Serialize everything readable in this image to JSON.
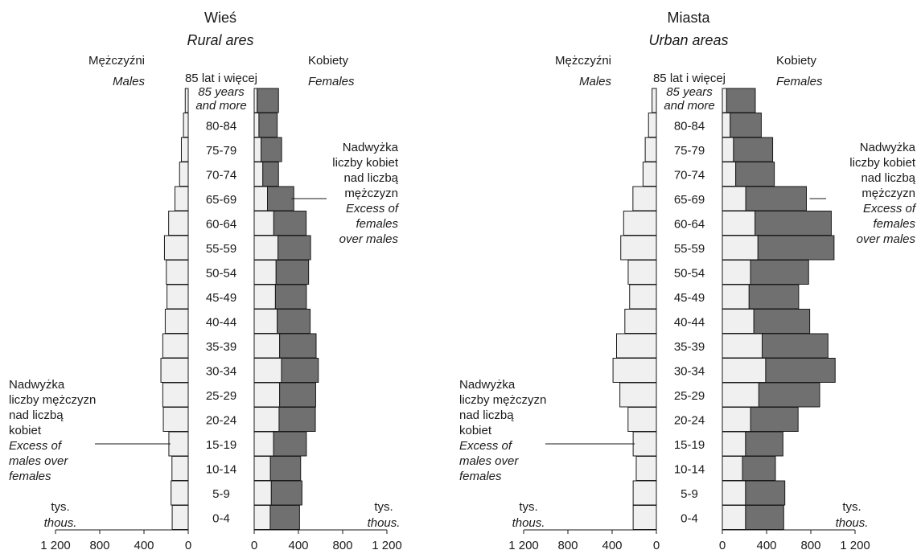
{
  "chart_data": {
    "type": "bar",
    "unit_label": "tys.",
    "unit_label_en": "thous.",
    "side_labels": {
      "males": "Mężczyźni",
      "males_en": "Males",
      "females": "Kobiety",
      "females_en": "Females"
    },
    "age_groups": [
      "85 lat i więcej",
      "80-84",
      "75-79",
      "70-74",
      "65-69",
      "60-64",
      "55-59",
      "50-54",
      "45-49",
      "40-44",
      "35-39",
      "30-34",
      "25-29",
      "20-24",
      "15-19",
      "10-14",
      "5-9",
      "0-4"
    ],
    "age_group_top_en_line1": "85 years",
    "age_group_top_en_line2": "and more",
    "ticks": [
      "0",
      "400",
      "800",
      "1 200"
    ],
    "xlim": [
      0,
      1200
    ],
    "panels": [
      {
        "title": "Wieś",
        "title_en": "Rural ares",
        "males": [
          27,
          43,
          62,
          78,
          120,
          177,
          215,
          198,
          192,
          208,
          230,
          247,
          230,
          225,
          175,
          147,
          155,
          145
        ],
        "females": [
          220,
          208,
          248,
          220,
          358,
          470,
          510,
          492,
          472,
          506,
          560,
          580,
          556,
          553,
          472,
          420,
          432,
          410
        ],
        "excess_females": {
          "text": [
            "Nadwyżka",
            "liczby kobiet",
            "nad liczbą",
            "mężczyzn"
          ],
          "text_en": [
            "Excess of",
            "females",
            "over males"
          ]
        },
        "excess_males": {
          "text": [
            "Nadwyżka",
            "liczby mężczyzn",
            "nad liczbą",
            "kobiet"
          ],
          "text_en": [
            "Excess of",
            "males over",
            "females"
          ]
        }
      },
      {
        "title": "Miasta",
        "title_en": "Urban areas",
        "males": [
          39,
          71,
          101,
          121,
          212,
          296,
          322,
          255,
          242,
          285,
          360,
          392,
          330,
          256,
          210,
          182,
          210,
          210
        ],
        "females": [
          298,
          352,
          455,
          470,
          760,
          985,
          1010,
          780,
          690,
          790,
          955,
          1020,
          880,
          685,
          548,
          480,
          565,
          555
        ],
        "excess_females": {
          "text": [
            "Nadwyżka",
            "liczby kobiet",
            "nad liczbą",
            "mężczyzn"
          ],
          "text_en": [
            "Excess of",
            "females",
            "over males"
          ]
        },
        "excess_males": {
          "text": [
            "Nadwyżka",
            "liczby mężczyzn",
            "nad liczbą",
            "kobiet"
          ],
          "text_en": [
            "Excess of",
            "males over",
            "females"
          ]
        }
      }
    ],
    "colors": {
      "bar_fill": "#f0f0f0",
      "excess_fill": "#707070",
      "stroke": "#1a1a1a"
    }
  }
}
